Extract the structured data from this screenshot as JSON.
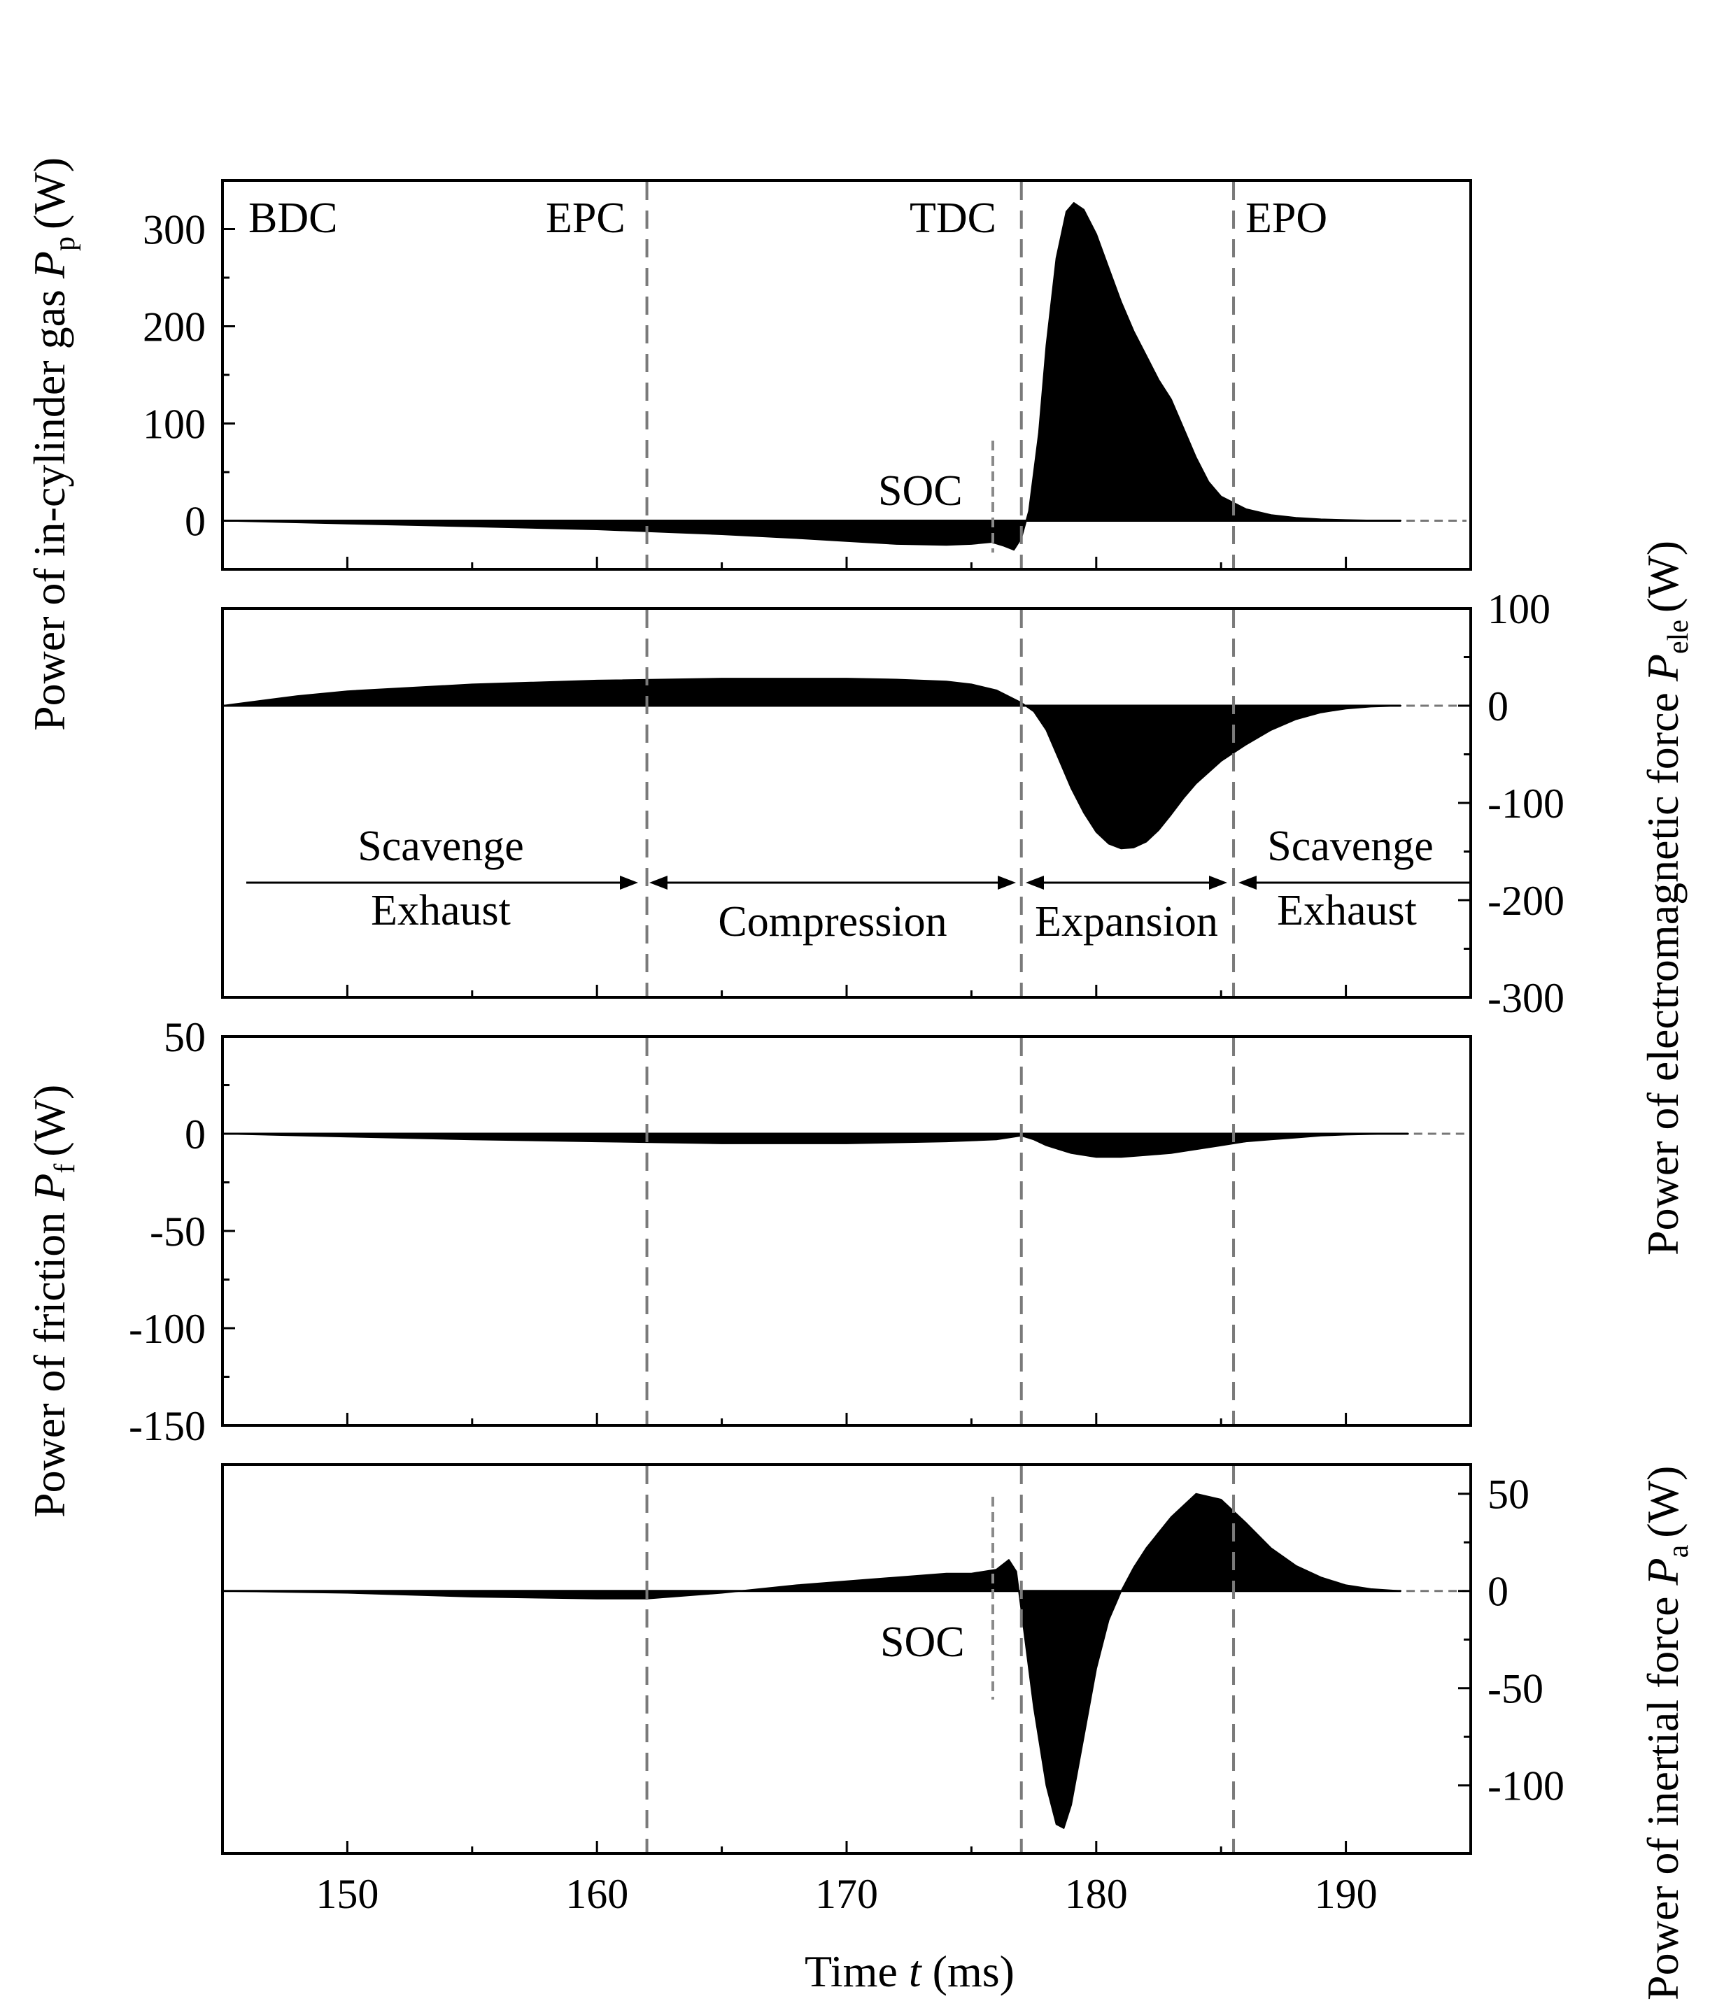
{
  "chart_data": [
    {
      "id": "gas",
      "type": "area",
      "ylabel": "Power of in-cylinder gas",
      "ylabel_symbol": "P",
      "ylabel_subscript": "p",
      "ylabel_unit": "(W)",
      "yaxis_side": "left",
      "ylim": [
        -50,
        350
      ],
      "yticks": [
        300,
        200,
        100,
        0
      ],
      "xlim": [
        145,
        195
      ],
      "t": [
        145,
        150,
        155,
        160,
        162,
        165,
        168,
        170,
        172,
        174,
        175,
        175.8,
        176.3,
        176.7,
        177,
        177.3,
        177.7,
        178,
        178.4,
        178.8,
        179.1,
        179.5,
        180,
        180.5,
        181,
        181.5,
        182,
        182.5,
        183,
        183.5,
        184,
        184.5,
        185,
        186,
        187,
        188,
        189,
        190,
        191,
        192.2
      ],
      "power": [
        0,
        -3,
        -6,
        -9,
        -11,
        -14,
        -18,
        -21,
        -24,
        -25,
        -24,
        -22,
        -26,
        -30,
        -18,
        10,
        90,
        180,
        270,
        318,
        327,
        320,
        295,
        260,
        225,
        195,
        170,
        145,
        125,
        95,
        65,
        40,
        25,
        12,
        6,
        3,
        1.5,
        0.8,
        0.3,
        0
      ],
      "annotations": [
        "BDC",
        "EPC",
        "TDC",
        "EPO",
        "SOC"
      ]
    },
    {
      "id": "ele",
      "type": "area",
      "ylabel": "Power of electromagnetic force",
      "ylabel_symbol": "P",
      "ylabel_subscript": "ele",
      "ylabel_unit": "(W)",
      "yaxis_side": "right",
      "ylim": [
        -300,
        100
      ],
      "yticks": [
        100,
        0,
        -100,
        -200,
        -300
      ],
      "xlim": [
        145,
        195
      ],
      "t": [
        145,
        148,
        150,
        155,
        160,
        165,
        170,
        172,
        174,
        175,
        176,
        177,
        177.5,
        178,
        178.5,
        179,
        179.5,
        180,
        180.5,
        181,
        181.5,
        182,
        182.5,
        183,
        183.5,
        184,
        185,
        186,
        187,
        188,
        189,
        190,
        191,
        192.2
      ],
      "power": [
        0,
        10,
        15,
        22,
        26,
        28,
        28,
        27,
        25,
        22,
        16,
        3,
        -6,
        -25,
        -55,
        -85,
        -110,
        -130,
        -142,
        -147,
        -146,
        -140,
        -128,
        -112,
        -95,
        -80,
        -57,
        -40,
        -25,
        -14,
        -7,
        -3,
        -1,
        0
      ],
      "phases": [
        {
          "label_top": "Scavenge",
          "label_bottom": "Exhaust"
        },
        {
          "label": "Compression"
        },
        {
          "label": "Expansion"
        },
        {
          "label_top": "Scavenge",
          "label_bottom": "Exhaust"
        }
      ]
    },
    {
      "id": "fric",
      "type": "area",
      "ylabel": "Power of friction",
      "ylabel_symbol": "P",
      "ylabel_subscript": "f",
      "ylabel_unit": "(W)",
      "yaxis_side": "left",
      "ylim": [
        -150,
        50
      ],
      "yticks": [
        50,
        0,
        -50,
        -100,
        -150
      ],
      "xlim": [
        145,
        195
      ],
      "t": [
        145,
        150,
        155,
        160,
        165,
        170,
        174,
        176,
        177,
        177.5,
        178,
        179,
        180,
        181,
        182,
        183,
        184,
        185,
        186,
        187,
        188,
        189,
        190,
        191,
        192.5
      ],
      "power": [
        0,
        -1.5,
        -3,
        -4,
        -5,
        -5,
        -4,
        -3,
        -1,
        -3,
        -6,
        -10,
        -12,
        -12,
        -11,
        -10,
        -8,
        -6,
        -4,
        -3,
        -2,
        -1,
        -0.5,
        -0.2,
        0
      ]
    },
    {
      "id": "inert",
      "type": "area",
      "ylabel": "Power of inertial force",
      "ylabel_symbol": "P",
      "ylabel_subscript": "a",
      "ylabel_unit": "(W)",
      "yaxis_side": "right",
      "ylim": [
        -135,
        65
      ],
      "yticks": [
        50,
        0,
        -50,
        -100
      ],
      "xlim": [
        145,
        195
      ],
      "t": [
        145,
        150,
        155,
        160,
        162,
        165,
        168,
        170,
        172,
        174,
        175,
        176,
        176.5,
        176.8,
        177.1,
        177.5,
        178,
        178.4,
        178.7,
        179,
        179.5,
        180,
        180.5,
        181,
        181.5,
        182,
        183,
        184,
        185,
        186,
        187,
        188,
        189,
        190,
        191,
        192.2
      ],
      "power": [
        0,
        -1,
        -3,
        -4,
        -4,
        -1,
        3,
        5,
        7,
        9,
        9,
        11,
        16,
        10,
        -20,
        -60,
        -100,
        -120,
        -122,
        -110,
        -75,
        -40,
        -15,
        0,
        12,
        22,
        38,
        50,
        47,
        35,
        22,
        13,
        7,
        3,
        1,
        0
      ],
      "annotations": [
        "SOC"
      ]
    }
  ],
  "xaxis": {
    "label_prefix": "Time",
    "label_symbol": "t",
    "label_unit": "(ms)",
    "ticks": [
      150,
      160,
      170,
      180,
      190
    ],
    "xlim": [
      145,
      195
    ]
  },
  "events": [
    {
      "name": "BDC",
      "t": 145
    },
    {
      "name": "EPC",
      "t": 162
    },
    {
      "name": "TDC",
      "t": 177
    },
    {
      "name": "EPO",
      "t": 185.5
    },
    {
      "name": "SOC",
      "t": 176
    }
  ],
  "colors": {
    "fill": "#000000",
    "dashed": "#7a7a7a"
  }
}
